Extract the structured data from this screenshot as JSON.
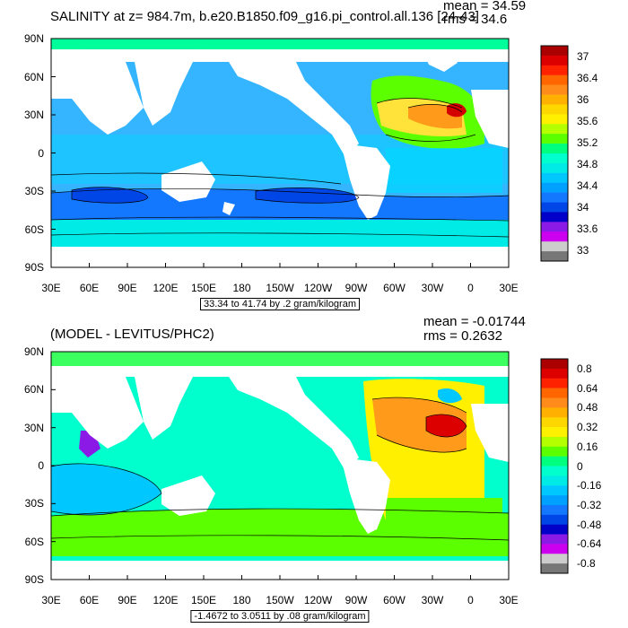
{
  "top": {
    "title": "SALINITY at z= 984.7m, b.e20.B1850.f09_g16.pi_control.all.136 [24-43]",
    "mean": "mean = 34.59",
    "rms": "rms = 34.6",
    "contour_info": "33.34 to 41.74 by .2 gram/kilogram",
    "colorbar_labels": [
      "37",
      "36.4",
      "36",
      "35.6",
      "35.2",
      "34.8",
      "34.4",
      "34",
      "33.6",
      "33"
    ],
    "colors": [
      "#aa0000",
      "#dd0000",
      "#ff2200",
      "#ff6600",
      "#ff8c1a",
      "#ffb000",
      "#ffd700",
      "#fff000",
      "#b4ff00",
      "#5cff00",
      "#00ff7f",
      "#00ffcc",
      "#00ebe6",
      "#00c8ff",
      "#00a0ff",
      "#1478ff",
      "#0046e6",
      "#0000c8",
      "#8c1ae6",
      "#cc00ee",
      "#cccccc",
      "#777777"
    ]
  },
  "bottom": {
    "title": "(MODEL - LEVITUS/PHC2)",
    "mean": "mean = -0.01744",
    "rms": "rms = 0.2632",
    "contour_info": "-1.4672 to 3.0511 by .08 gram/kilogram",
    "colorbar_labels": [
      "0.8",
      "0.64",
      "0.48",
      "0.32",
      "0.16",
      "0",
      "-0.16",
      "-0.32",
      "-0.48",
      "-0.64",
      "-0.8"
    ],
    "colors": [
      "#aa0000",
      "#dd0000",
      "#ff2200",
      "#ff6600",
      "#ff8c1a",
      "#ffb000",
      "#ffd700",
      "#fff000",
      "#b4ff00",
      "#5cff00",
      "#00ff7f",
      "#00ffcc",
      "#00ebe6",
      "#00c8ff",
      "#00a0ff",
      "#1478ff",
      "#0046e6",
      "#0000c8",
      "#8c1ae6",
      "#cc00ee",
      "#cccccc",
      "#777777"
    ]
  },
  "axes": {
    "lat_labels": [
      "90N",
      "60N",
      "30N",
      "0",
      "30S",
      "60S",
      "90S"
    ],
    "lon_labels": [
      "30E",
      "60E",
      "90E",
      "120E",
      "150E",
      "180",
      "150W",
      "120W",
      "90W",
      "60W",
      "30W",
      "0",
      "30E"
    ]
  },
  "map_colors": {
    "top_ocean": "#35b4ff",
    "top_band_south": "#1478ff",
    "top_deep": "#0046e6",
    "top_arctic": "#00ff9a",
    "top_tropics": "#00d8ff",
    "top_atl_hi": "#ffe23a",
    "top_atl_orange": "#ff9a1a",
    "top_atl_red": "#d40000",
    "bot_ocean": "#00ffcc",
    "bot_south": "#5cff00",
    "bot_arctic": "#3cff60",
    "bot_atl": "#fff000",
    "bot_orange": "#ff9a1a",
    "bot_red": "#dd0000",
    "bot_cyan": "#00c8ff",
    "bot_purple": "#8c1ae6",
    "land": "#ffffff"
  }
}
